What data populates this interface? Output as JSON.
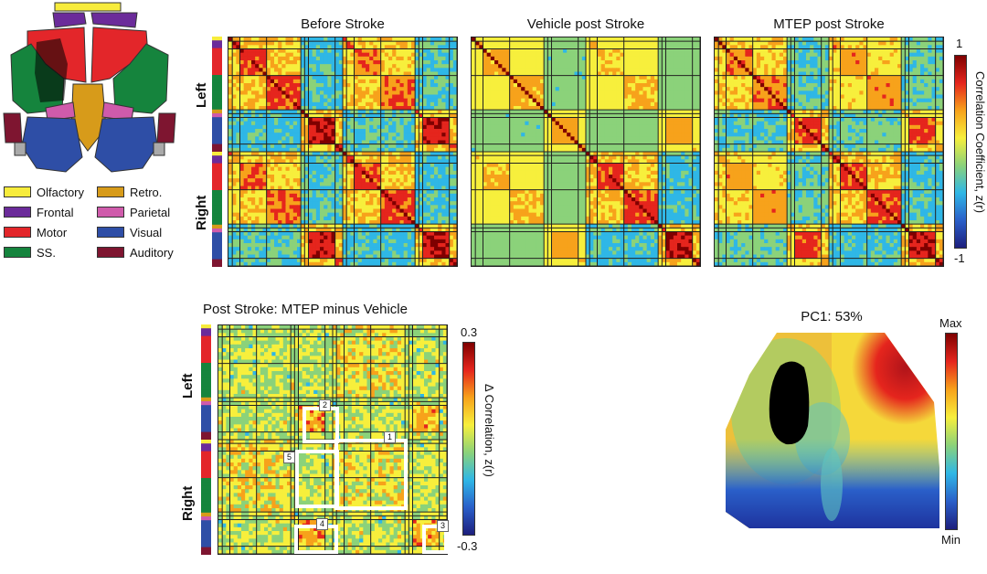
{
  "colors": {
    "Olfactory": "#f7ec3c",
    "Frontal": "#6b2b9a",
    "Motor": "#e3262a",
    "SS.": "#15843d",
    "Retro.": "#d79b1a",
    "Parietal": "#cf5bab",
    "Visual": "#2e4ea6",
    "Auditory": "#7e1530"
  },
  "legend": {
    "left": [
      "Olfactory",
      "Frontal",
      "Motor",
      "SS."
    ],
    "right": [
      "Retro.",
      "Parietal",
      "Visual",
      "Auditory"
    ]
  },
  "panel_a": {
    "titles": [
      "Before Stroke",
      "Vehicle post Stroke",
      "MTEP post Stroke"
    ],
    "side_left": "Left",
    "side_right": "Right",
    "colorbar": {
      "max": "1",
      "min": "-1",
      "label": "Correlation Coefficient, z(r)"
    }
  },
  "panel_b": {
    "title": "Post Stroke: MTEP minus Vehicle",
    "side_left": "Left",
    "side_right": "Right",
    "colorbar": {
      "max": "0.3",
      "min": "-0.3",
      "label": "Δ Correlation, z(r)"
    },
    "boxes": [
      "1",
      "2",
      "3",
      "4",
      "5"
    ]
  },
  "panel_c": {
    "title": "PC1: 53%",
    "colorbar": {
      "max": "Max",
      "min": "Min"
    }
  }
}
